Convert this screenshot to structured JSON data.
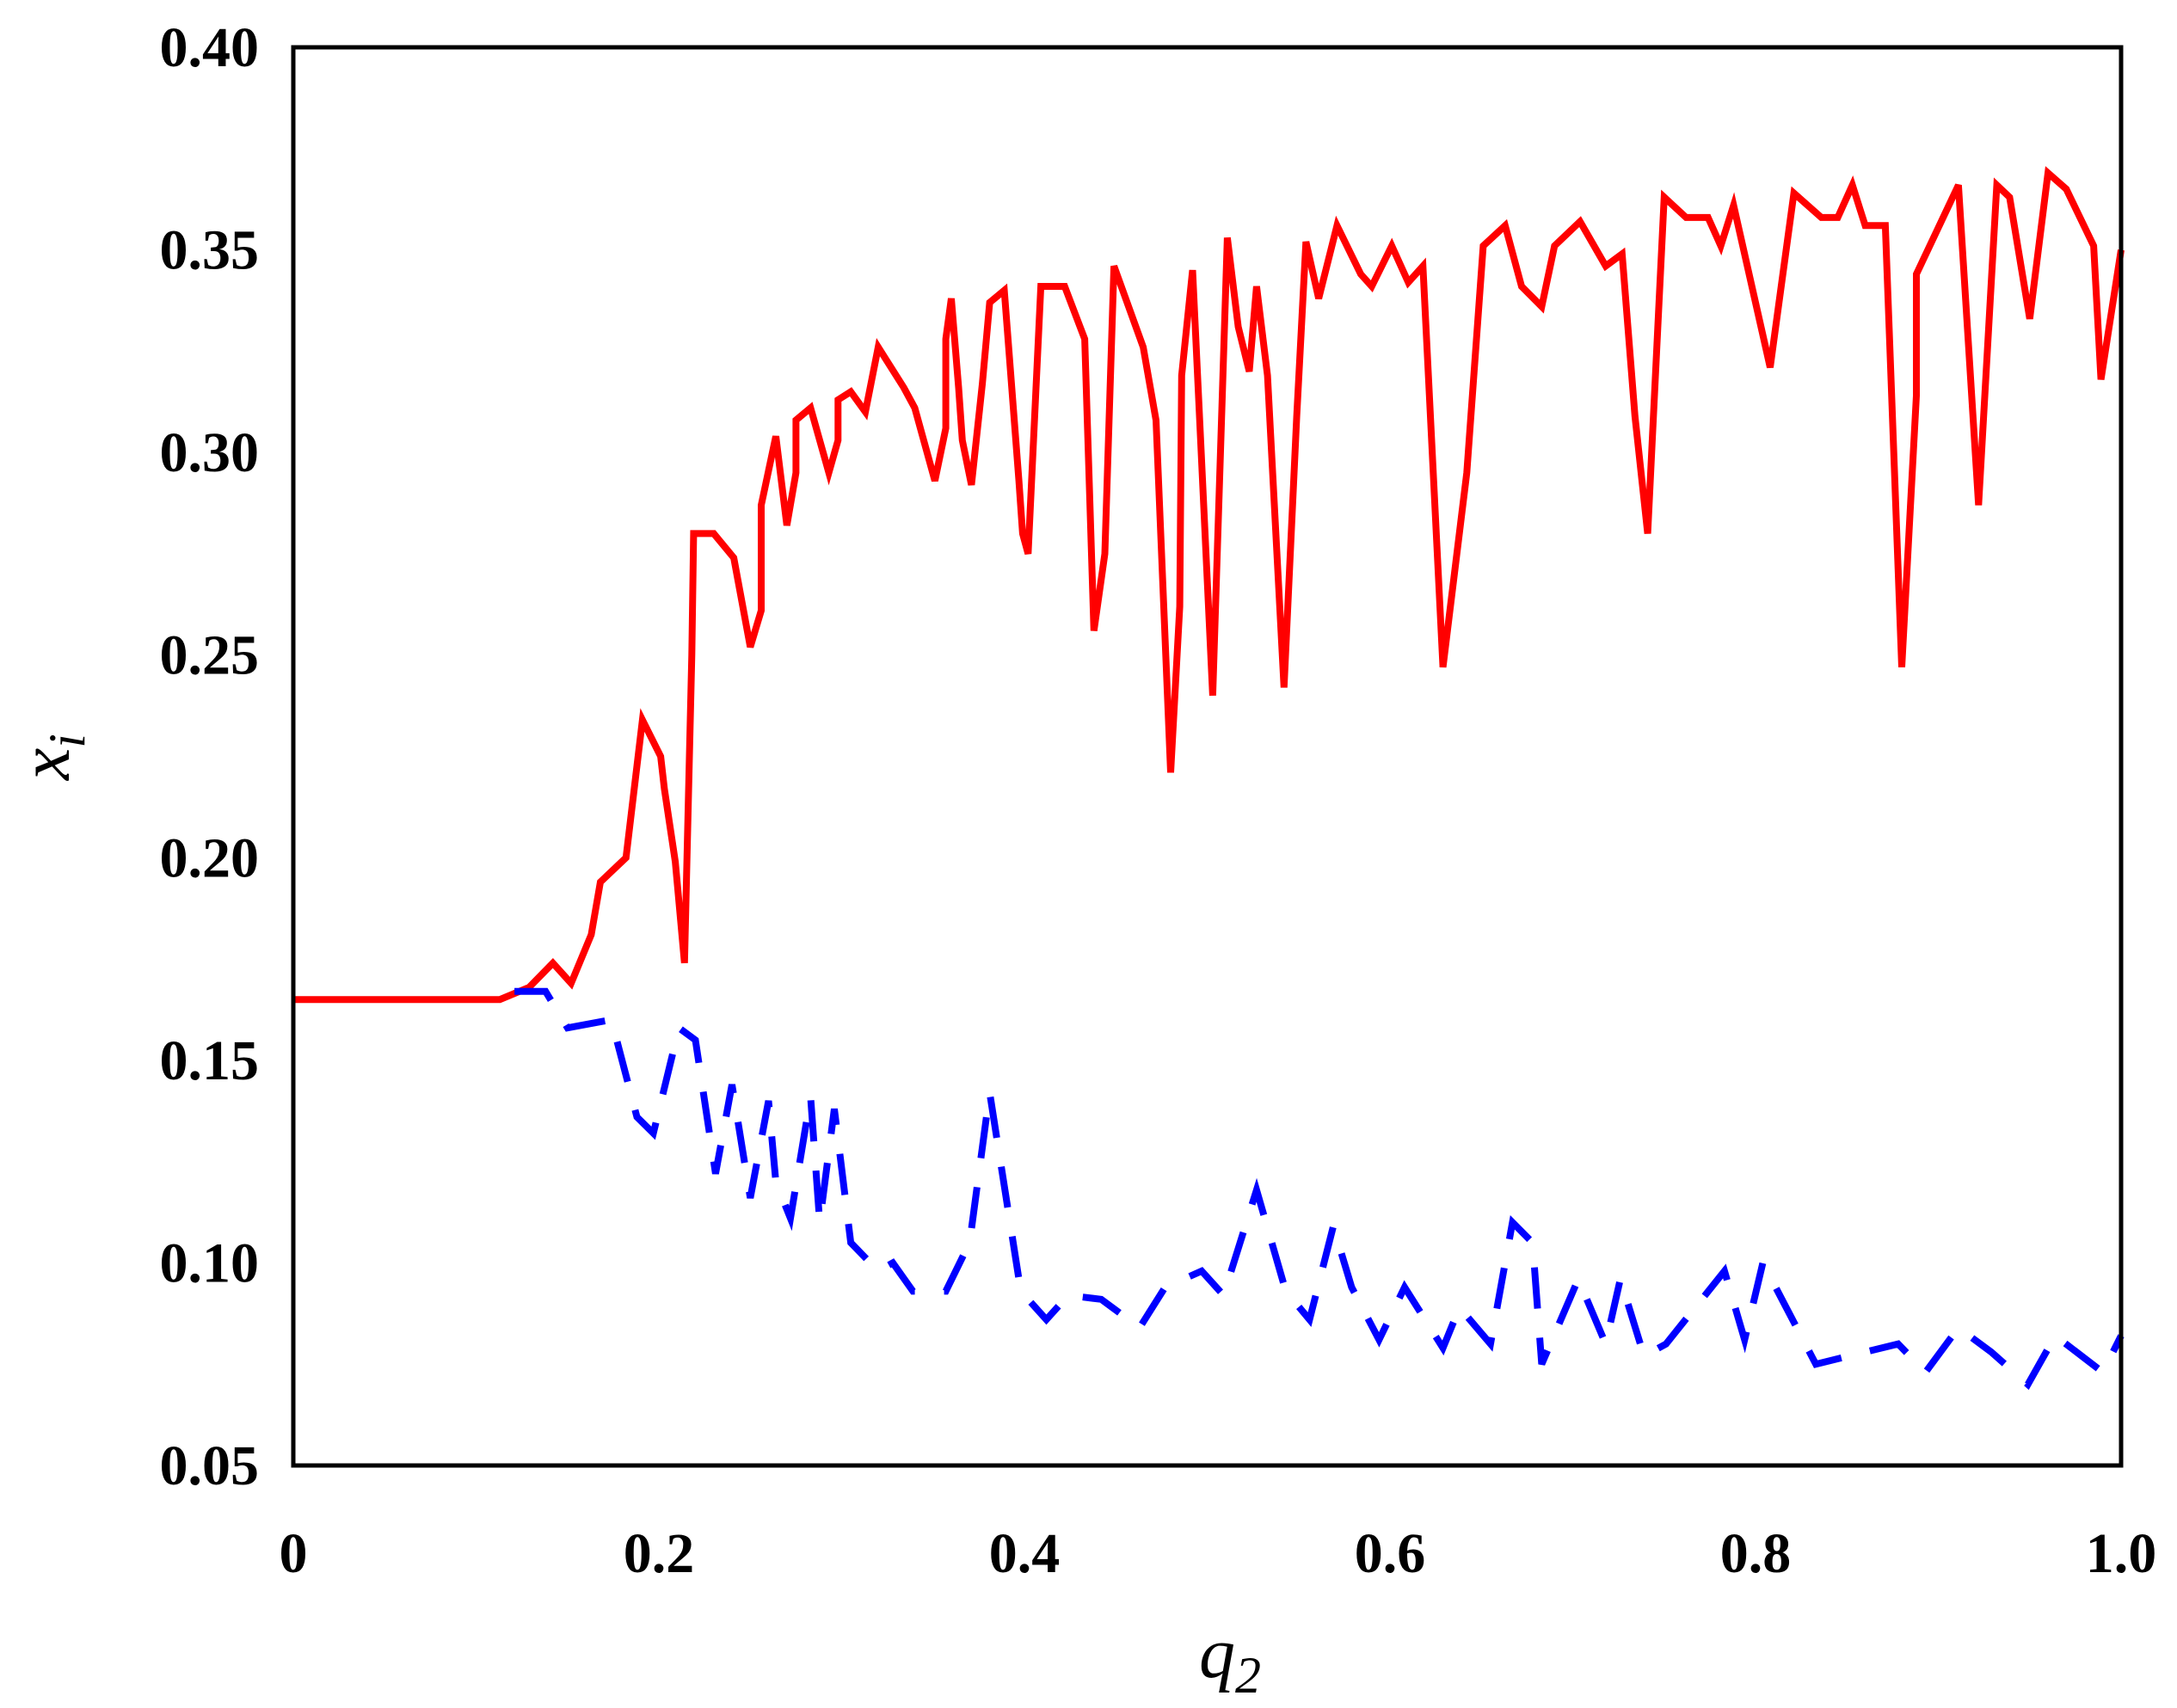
{
  "chart_data": {
    "type": "line",
    "xlabel": {
      "text": "q",
      "subscript": "2"
    },
    "ylabel": {
      "text": "x",
      "subscript": "i"
    },
    "xlim": [
      0,
      1
    ],
    "ylim": [
      0.05,
      0.4
    ],
    "xticks": [
      0,
      0.2,
      0.4,
      0.6,
      0.8,
      {
        "value": 1,
        "label": "1.0"
      }
    ],
    "yticks": [
      0.05,
      {
        "value": 0.1,
        "label": "0.10"
      },
      0.15,
      {
        "value": 0.2,
        "label": "0.20"
      },
      0.25,
      {
        "value": 0.3,
        "label": "0.30"
      },
      0.35,
      {
        "value": 0.4,
        "label": "0.40"
      }
    ],
    "grid": false,
    "series": [
      {
        "color": "#ff0000",
        "linestyle": "solid",
        "x": [
          0,
          0.113,
          0.129,
          0.142,
          0.152,
          0.163,
          0.168,
          0.182,
          0.191,
          0.201,
          0.203,
          0.209,
          0.214,
          0.218,
          0.219,
          0.23,
          0.241,
          0.25,
          0.256,
          0.256,
          0.264,
          0.27,
          0.275,
          0.275,
          0.283,
          0.293,
          0.298,
          0.298,
          0.305,
          0.313,
          0.32,
          0.334,
          0.34,
          0.351,
          0.357,
          0.357,
          0.36,
          0.364,
          0.366,
          0.371,
          0.377,
          0.381,
          0.389,
          0.397,
          0.399,
          0.402,
          0.409,
          0.422,
          0.433,
          0.438,
          0.444,
          0.449,
          0.465,
          0.472,
          0.48,
          0.485,
          0.486,
          0.492,
          0.503,
          0.511,
          0.517,
          0.523,
          0.527,
          0.533,
          0.542,
          0.549,
          0.554,
          0.561,
          0.571,
          0.584,
          0.59,
          0.601,
          0.61,
          0.618,
          0.629,
          0.642,
          0.651,
          0.663,
          0.672,
          0.683,
          0.69,
          0.704,
          0.718,
          0.727,
          0.734,
          0.741,
          0.75,
          0.762,
          0.774,
          0.781,
          0.788,
          0.808,
          0.821,
          0.836,
          0.845,
          0.853,
          0.86,
          0.871,
          0.88,
          0.888,
          0.888,
          0.911,
          0.922,
          0.932,
          0.939,
          0.95,
          0.96,
          0.97,
          0.985,
          0.989,
          1.0
        ],
        "values": [
          0.165,
          0.165,
          0.168,
          0.174,
          0.169,
          0.181,
          0.194,
          0.2,
          0.234,
          0.225,
          0.217,
          0.199,
          0.174,
          0.25,
          0.28,
          0.28,
          0.274,
          0.252,
          0.261,
          0.287,
          0.304,
          0.282,
          0.295,
          0.308,
          0.311,
          0.295,
          0.303,
          0.313,
          0.315,
          0.31,
          0.326,
          0.316,
          0.311,
          0.293,
          0.306,
          0.328,
          0.338,
          0.316,
          0.303,
          0.292,
          0.317,
          0.337,
          0.34,
          0.293,
          0.28,
          0.275,
          0.341,
          0.341,
          0.328,
          0.256,
          0.275,
          0.346,
          0.326,
          0.308,
          0.221,
          0.262,
          0.319,
          0.345,
          0.24,
          0.353,
          0.331,
          0.32,
          0.341,
          0.319,
          0.242,
          0.309,
          0.352,
          0.338,
          0.356,
          0.344,
          0.341,
          0.351,
          0.342,
          0.346,
          0.247,
          0.295,
          0.351,
          0.356,
          0.341,
          0.336,
          0.351,
          0.357,
          0.346,
          0.349,
          0.309,
          0.28,
          0.363,
          0.358,
          0.358,
          0.351,
          0.361,
          0.321,
          0.364,
          0.358,
          0.358,
          0.366,
          0.356,
          0.356,
          0.247,
          0.314,
          0.344,
          0.366,
          0.287,
          0.366,
          0.363,
          0.333,
          0.369,
          0.365,
          0.351,
          0.318,
          0.35
        ]
      },
      {
        "color": "#0000ff",
        "linestyle": "dashed",
        "x": [
          0.121,
          0.138,
          0.15,
          0.174,
          0.188,
          0.197,
          0.211,
          0.22,
          0.226,
          0.231,
          0.24,
          0.25,
          0.26,
          0.264,
          0.272,
          0.283,
          0.288,
          0.296,
          0.305,
          0.32,
          0.328,
          0.339,
          0.357,
          0.37,
          0.381,
          0.398,
          0.412,
          0.424,
          0.442,
          0.463,
          0.477,
          0.497,
          0.509,
          0.527,
          0.543,
          0.556,
          0.569,
          0.579,
          0.594,
          0.608,
          0.629,
          0.638,
          0.655,
          0.667,
          0.678,
          0.683,
          0.703,
          0.718,
          0.726,
          0.739,
          0.751,
          0.783,
          0.794,
          0.804,
          0.833,
          0.878,
          0.893,
          0.911,
          0.929,
          0.949,
          0.964,
          0.99,
          1.0
        ],
        "values": [
          0.167,
          0.167,
          0.158,
          0.16,
          0.136,
          0.132,
          0.158,
          0.155,
          0.137,
          0.122,
          0.144,
          0.116,
          0.14,
          0.12,
          0.111,
          0.141,
          0.11,
          0.138,
          0.105,
          0.098,
          0.1,
          0.093,
          0.093,
          0.105,
          0.142,
          0.093,
          0.086,
          0.092,
          0.091,
          0.084,
          0.094,
          0.098,
          0.092,
          0.118,
          0.093,
          0.086,
          0.109,
          0.094,
          0.081,
          0.094,
          0.079,
          0.089,
          0.08,
          0.11,
          0.105,
          0.075,
          0.096,
          0.08,
          0.096,
          0.077,
          0.08,
          0.098,
          0.081,
          0.1,
          0.075,
          0.08,
          0.073,
          0.084,
          0.078,
          0.07,
          0.082,
          0.073,
          0.082
        ]
      }
    ]
  }
}
